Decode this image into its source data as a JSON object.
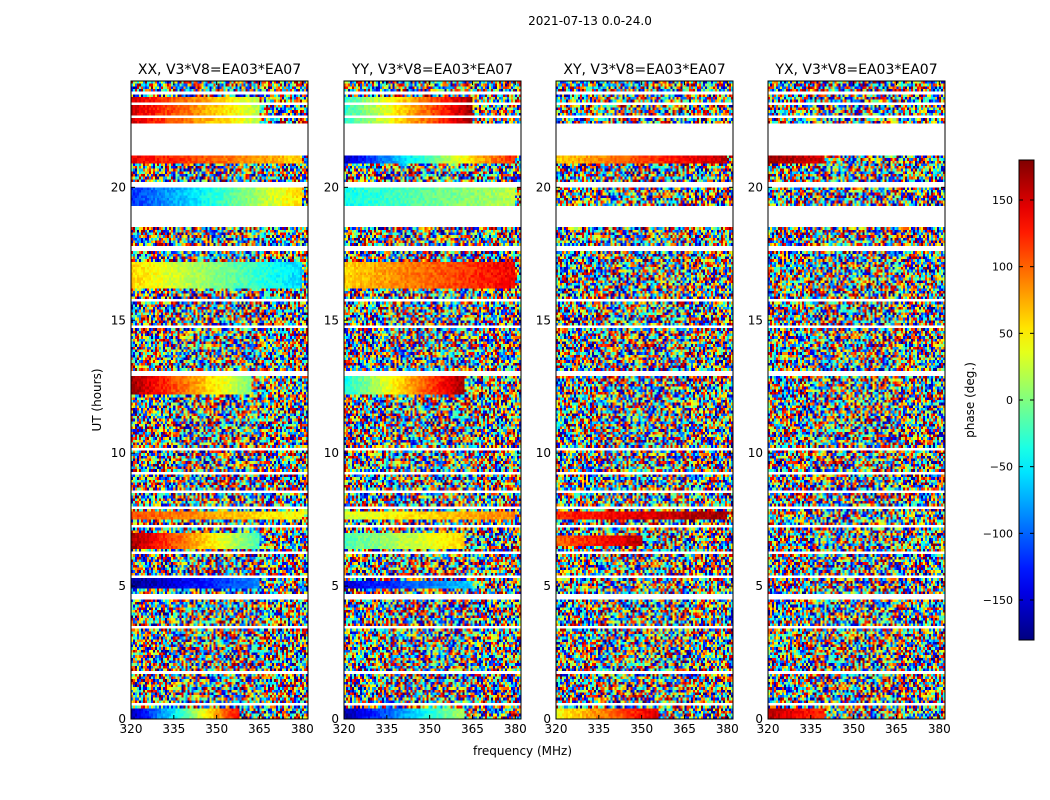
{
  "figure": {
    "suptitle": "2021-07-13 0.0-24.0",
    "xlabel": "frequency (MHz)",
    "ylabel": "UT (hours)",
    "colors": {
      "empty": "#ffffff",
      "frame": "#000000"
    }
  },
  "chart_data": {
    "type": "heatmap",
    "x_unit": "MHz",
    "y_unit": "hours",
    "xlim": [
      320,
      382
    ],
    "ylim": [
      0,
      24
    ],
    "xticks": [
      320,
      335,
      350,
      365,
      380
    ],
    "yticks": [
      0,
      5,
      10,
      15,
      20
    ],
    "panels": [
      {
        "title": "XX, V3*V8=EA03*EA07",
        "polarization": "XX",
        "coherent_bands": [
          {
            "t": [
              0.05,
              0.45
            ],
            "f": [
              320,
              358
            ],
            "phase_start": -170,
            "phase_end": 140
          },
          {
            "t": [
              4.85,
              5.25
            ],
            "f": [
              320,
              365
            ],
            "phase_start": -175,
            "phase_end": -90
          },
          {
            "t": [
              6.4,
              6.95
            ],
            "f": [
              320,
              365
            ],
            "phase_start": 170,
            "phase_end": -20
          },
          {
            "t": [
              7.55,
              7.75
            ],
            "f": [
              320,
              380
            ],
            "phase_start": 110,
            "phase_end": 40
          },
          {
            "t": [
              12.2,
              12.9
            ],
            "f": [
              320,
              362
            ],
            "phase_start": 170,
            "phase_end": 0
          },
          {
            "t": [
              16.2,
              17.2
            ],
            "f": [
              320,
              380
            ],
            "phase_start": 60,
            "phase_end": -60
          },
          {
            "t": [
              19.3,
              20.0
            ],
            "f": [
              320,
              380
            ],
            "phase_start": -120,
            "phase_end": 60
          },
          {
            "t": [
              20.9,
              21.2
            ],
            "f": [
              320,
              380
            ],
            "phase_start": 140,
            "phase_end": 60
          },
          {
            "t": [
              22.4,
              23.4
            ],
            "f": [
              320,
              365
            ],
            "phase_start": 150,
            "phase_end": 20
          }
        ]
      },
      {
        "title": "YY, V3*V8=EA03*EA07",
        "polarization": "YY",
        "coherent_bands": [
          {
            "t": [
              0.0,
              0.45
            ],
            "f": [
              320,
              362
            ],
            "phase_start": -170,
            "phase_end": 20
          },
          {
            "t": [
              4.85,
              5.2
            ],
            "f": [
              320,
              365
            ],
            "phase_start": -150,
            "phase_end": -60
          },
          {
            "t": [
              6.4,
              6.95
            ],
            "f": [
              320,
              362
            ],
            "phase_start": -20,
            "phase_end": 60
          },
          {
            "t": [
              7.55,
              7.75
            ],
            "f": [
              320,
              380
            ],
            "phase_start": 30,
            "phase_end": 90
          },
          {
            "t": [
              12.2,
              12.9
            ],
            "f": [
              320,
              362
            ],
            "phase_start": -40,
            "phase_end": 170
          },
          {
            "t": [
              16.2,
              17.2
            ],
            "f": [
              320,
              380
            ],
            "phase_start": 60,
            "phase_end": 140
          },
          {
            "t": [
              19.3,
              20.0
            ],
            "f": [
              320,
              380
            ],
            "phase_start": -40,
            "phase_end": 20
          },
          {
            "t": [
              20.9,
              21.2
            ],
            "f": [
              320,
              380
            ],
            "phase_start": -160,
            "phase_end": 130
          },
          {
            "t": [
              22.4,
              23.4
            ],
            "f": [
              320,
              365
            ],
            "phase_start": -30,
            "phase_end": 170
          }
        ]
      },
      {
        "title": "XY, V3*V8=EA03*EA07",
        "polarization": "XY",
        "coherent_bands": [
          {
            "t": [
              0.05,
              0.45
            ],
            "f": [
              320,
              356
            ],
            "phase_start": 40,
            "phase_end": 150
          },
          {
            "t": [
              6.5,
              6.9
            ],
            "f": [
              320,
              350
            ],
            "phase_start": 100,
            "phase_end": 160
          },
          {
            "t": [
              7.55,
              7.75
            ],
            "f": [
              320,
              380
            ],
            "phase_start": 120,
            "phase_end": 170
          },
          {
            "t": [
              20.9,
              21.2
            ],
            "f": [
              320,
              380
            ],
            "phase_start": 60,
            "phase_end": 160
          }
        ]
      },
      {
        "title": "YX, V3*V8=EA03*EA07",
        "polarization": "YX",
        "coherent_bands": [
          {
            "t": [
              0.05,
              0.45
            ],
            "f": [
              320,
              340
            ],
            "phase_start": 160,
            "phase_end": 120
          },
          {
            "t": [
              20.9,
              21.2
            ],
            "f": [
              320,
              340
            ],
            "phase_start": 170,
            "phase_end": 150
          }
        ]
      }
    ],
    "empty_rows_hours": [
      [
        0.5,
        0.6
      ],
      [
        1.7,
        1.8
      ],
      [
        2.95,
        3.05
      ],
      [
        3.45,
        3.55
      ],
      [
        4.5,
        4.65
      ],
      [
        5.3,
        5.4
      ],
      [
        6.2,
        6.28
      ],
      [
        7.2,
        7.3
      ],
      [
        7.9,
        8.0
      ],
      [
        8.5,
        8.57
      ],
      [
        9.2,
        9.3
      ],
      [
        10.1,
        10.2
      ],
      [
        12.95,
        13.05
      ],
      [
        14.7,
        14.8
      ],
      [
        15.7,
        15.8
      ],
      [
        17.65,
        17.75
      ],
      [
        18.55,
        18.9
      ],
      [
        18.9,
        19.25
      ],
      [
        20.05,
        20.15
      ],
      [
        21.2,
        21.6
      ],
      [
        21.6,
        22.4
      ],
      [
        22.6,
        22.68
      ],
      [
        23.1,
        23.2
      ],
      [
        23.5,
        23.58
      ]
    ],
    "colorbar": {
      "label": "phase (deg.)",
      "min": -180,
      "max": 180,
      "ticks": [
        -150,
        -100,
        -50,
        0,
        50,
        100,
        150
      ],
      "tick_labels": [
        "−150",
        "−100",
        "−50",
        "0",
        "50",
        "100",
        "150"
      ],
      "colormap": "jet"
    }
  }
}
